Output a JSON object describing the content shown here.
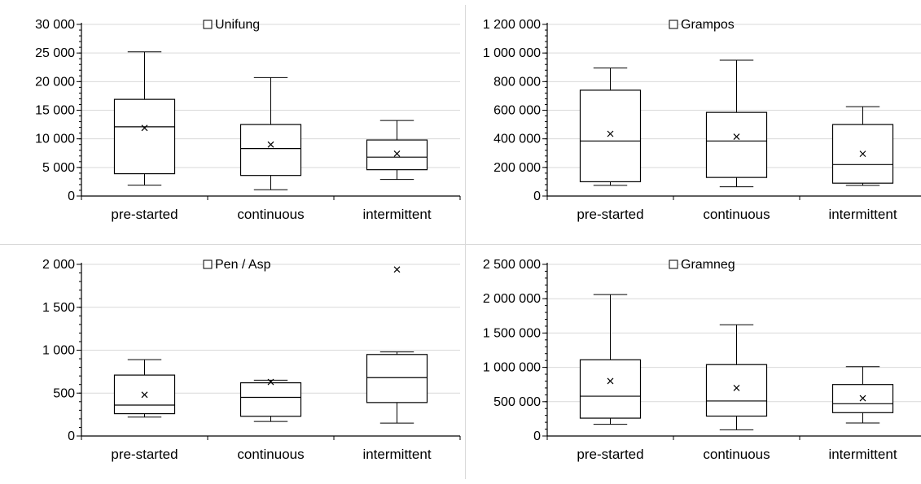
{
  "colors": {
    "stroke": "#000000",
    "grid": "#d9d9d9",
    "background": "#ffffff"
  },
  "chart_data": [
    {
      "type": "box",
      "legend": "Unifung",
      "legend_position": "top-center",
      "categories": [
        "pre-started",
        "continuous",
        "intermittent"
      ],
      "ylim": [
        0,
        30000
      ],
      "yticks": [
        0,
        5000,
        10000,
        15000,
        20000,
        25000,
        30000
      ],
      "ytick_labels": [
        "0",
        "5 000",
        "10 000",
        "15 000",
        "20 000",
        "25 000",
        "30 000"
      ],
      "grid": true,
      "boxes": [
        {
          "min": 1900,
          "q1": 3900,
          "median": 12100,
          "q3": 16900,
          "max": 25200,
          "mean": 11900
        },
        {
          "min": 1100,
          "q1": 3600,
          "median": 8300,
          "q3": 12500,
          "max": 20700,
          "mean": 9000
        },
        {
          "min": 2900,
          "q1": 4600,
          "median": 6800,
          "q3": 9800,
          "max": 13200,
          "mean": 7400
        }
      ]
    },
    {
      "type": "box",
      "legend": "Grampos",
      "legend_position": "top-center",
      "categories": [
        "pre-started",
        "continuous",
        "intermittent"
      ],
      "ylim": [
        0,
        1200000
      ],
      "yticks": [
        0,
        200000,
        400000,
        600000,
        800000,
        1000000,
        1200000
      ],
      "ytick_labels": [
        "0",
        "200 000",
        "400 000",
        "600 000",
        "800 000",
        "1 000 000",
        "1 200 000"
      ],
      "grid": true,
      "boxes": [
        {
          "min": 75000,
          "q1": 100000,
          "median": 385000,
          "q3": 740000,
          "max": 895000,
          "mean": 435000
        },
        {
          "min": 65000,
          "q1": 130000,
          "median": 385000,
          "q3": 585000,
          "max": 950000,
          "mean": 415000
        },
        {
          "min": 75000,
          "q1": 90000,
          "median": 220000,
          "q3": 500000,
          "max": 625000,
          "mean": 295000
        }
      ]
    },
    {
      "type": "box",
      "legend": "Pen / Asp",
      "legend_position": "top-center",
      "categories": [
        "pre-started",
        "continuous",
        "intermittent"
      ],
      "ylim": [
        0,
        2000
      ],
      "yticks": [
        0,
        500,
        1000,
        1500,
        2000
      ],
      "ytick_labels": [
        "0",
        "500",
        "1 000",
        "1 500",
        "2 000"
      ],
      "grid": true,
      "boxes": [
        {
          "min": 220,
          "q1": 260,
          "median": 360,
          "q3": 710,
          "max": 890,
          "mean": 480
        },
        {
          "min": 170,
          "q1": 230,
          "median": 450,
          "q3": 620,
          "max": 650,
          "mean": 630
        },
        {
          "min": 150,
          "q1": 390,
          "median": 680,
          "q3": 950,
          "max": 980,
          "mean": 1940
        }
      ]
    },
    {
      "type": "box",
      "legend": "Gramneg",
      "legend_position": "top-center",
      "categories": [
        "pre-started",
        "continuous",
        "intermittent"
      ],
      "ylim": [
        0,
        2500000
      ],
      "yticks": [
        0,
        500000,
        1000000,
        1500000,
        2000000,
        2500000
      ],
      "ytick_labels": [
        "0",
        "500 000",
        "1 000 000",
        "1 500 000",
        "2 000 000",
        "2 500 000"
      ],
      "grid": true,
      "boxes": [
        {
          "min": 170000,
          "q1": 260000,
          "median": 580000,
          "q3": 1110000,
          "max": 2060000,
          "mean": 800000
        },
        {
          "min": 90000,
          "q1": 290000,
          "median": 510000,
          "q3": 1040000,
          "max": 1620000,
          "mean": 700000
        },
        {
          "min": 190000,
          "q1": 340000,
          "median": 470000,
          "q3": 750000,
          "max": 1010000,
          "mean": 550000
        }
      ]
    }
  ]
}
